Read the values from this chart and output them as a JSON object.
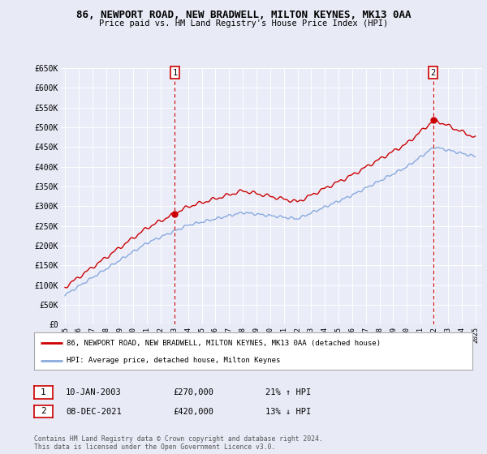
{
  "title_line1": "86, NEWPORT ROAD, NEW BRADWELL, MILTON KEYNES, MK13 0AA",
  "title_line2": "Price paid vs. HM Land Registry's House Price Index (HPI)",
  "ylabel_ticks": [
    "£0",
    "£50K",
    "£100K",
    "£150K",
    "£200K",
    "£250K",
    "£300K",
    "£350K",
    "£400K",
    "£450K",
    "£500K",
    "£550K",
    "£600K",
    "£650K"
  ],
  "ytick_values": [
    0,
    50000,
    100000,
    150000,
    200000,
    250000,
    300000,
    350000,
    400000,
    450000,
    500000,
    550000,
    600000,
    650000
  ],
  "xticklabels": [
    "1995",
    "1996",
    "1997",
    "1998",
    "1999",
    "2000",
    "2001",
    "2002",
    "2003",
    "2004",
    "2005",
    "2006",
    "2007",
    "2008",
    "2009",
    "2010",
    "2011",
    "2012",
    "2013",
    "2014",
    "2015",
    "2016",
    "2017",
    "2018",
    "2019",
    "2020",
    "2021",
    "2022",
    "2023",
    "2024",
    "2025"
  ],
  "legend_red": "86, NEWPORT ROAD, NEW BRADWELL, MILTON KEYNES, MK13 0AA (detached house)",
  "legend_blue": "HPI: Average price, detached house, Milton Keynes",
  "marker1_date": "10-JAN-2003",
  "marker1_price": 270000,
  "marker1_x": 2003.03,
  "marker2_date": "08-DEC-2021",
  "marker2_price": 420000,
  "marker2_x": 2021.92,
  "footnote1": "Contains HM Land Registry data © Crown copyright and database right 2024.",
  "footnote2": "This data is licensed under the Open Government Licence v3.0.",
  "fig_bg_color": "#e8eaf6",
  "plot_bg_color": "#eaecf8",
  "grid_color": "#ffffff",
  "red_line_color": "#cc0000",
  "blue_line_color": "#88aadd"
}
